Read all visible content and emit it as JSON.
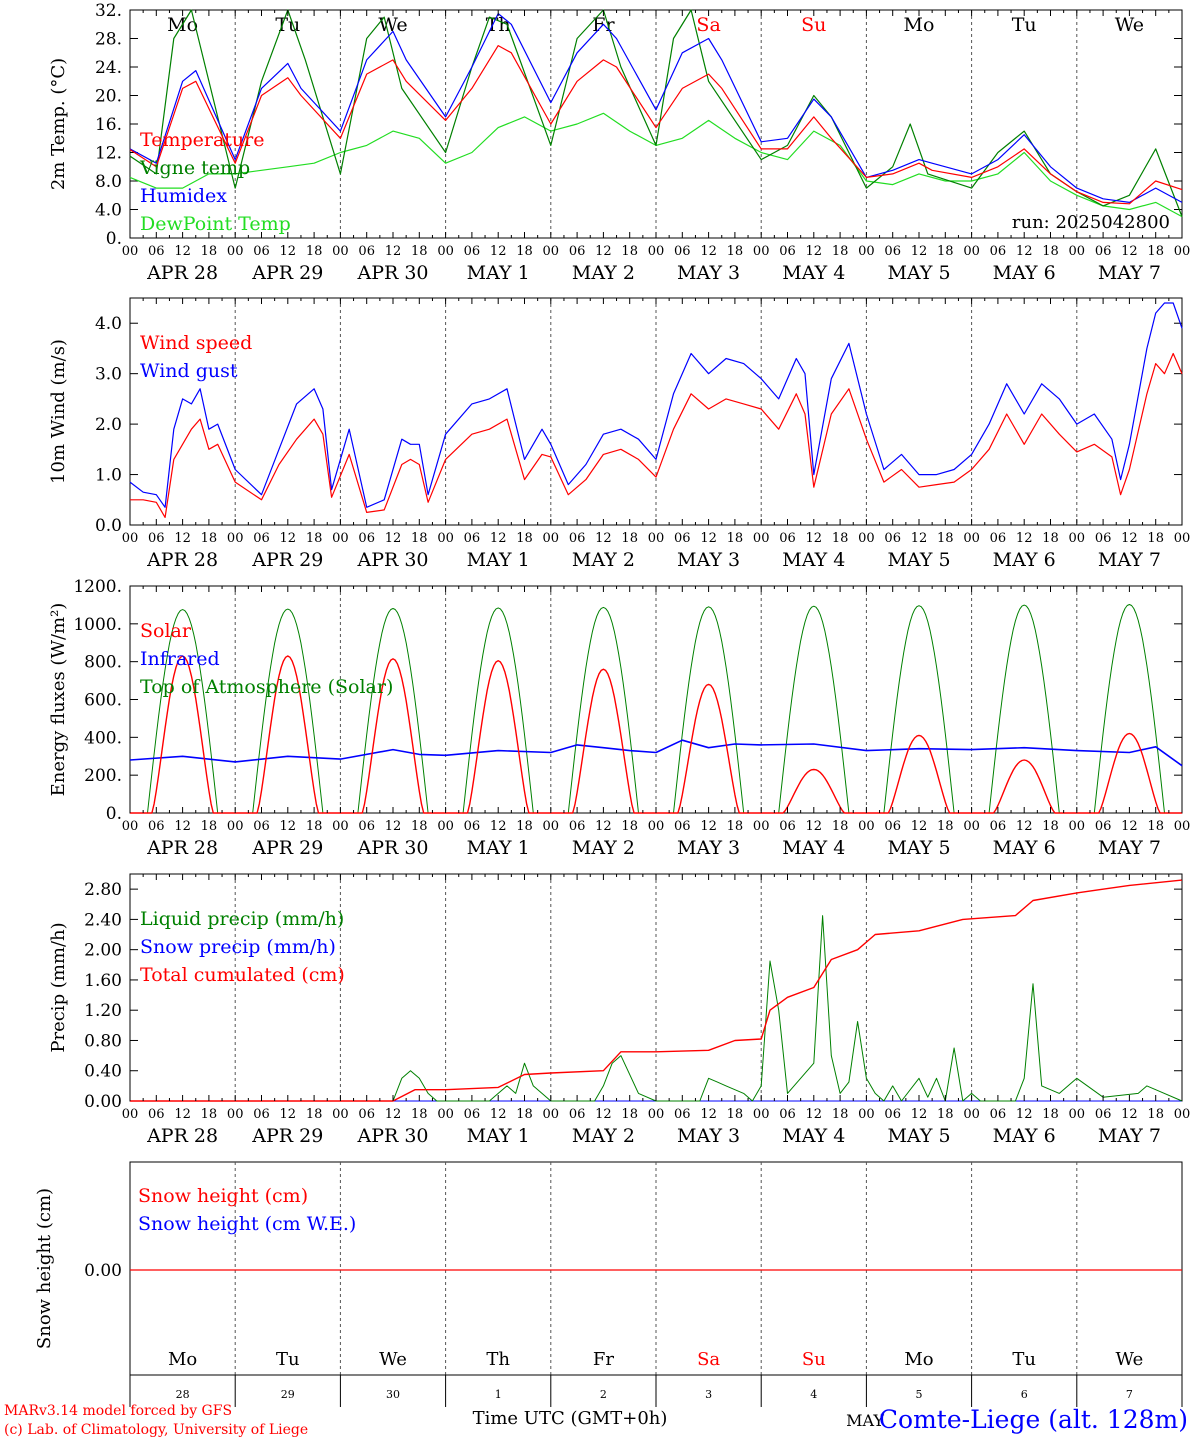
{
  "colors": {
    "red": "#ff0000",
    "dark_red": "#e00000",
    "blue": "#0000ff",
    "green": "#008000",
    "light_green": "#22dd22",
    "axis": "#000000",
    "grid": "#555555"
  },
  "day_names": [
    "Mo",
    "Tu",
    "We",
    "Th",
    "Fr",
    "Sa",
    "Su",
    "Mo",
    "Tu",
    "We"
  ],
  "day_name_colors": [
    "#000000",
    "#000000",
    "#000000",
    "#000000",
    "#000000",
    "#ff0000",
    "#ff0000",
    "#000000",
    "#000000",
    "#000000"
  ],
  "date_labels": [
    "APR 28",
    "APR 29",
    "APR 30",
    "MAY  1",
    "MAY  2",
    "MAY  3",
    "MAY  4",
    "MAY  5",
    "MAY  6",
    "MAY  7"
  ],
  "hour_ticks": [
    "00",
    "06",
    "12",
    "18"
  ],
  "hour_tick_end": "00",
  "day_numbers": [
    "28",
    "29",
    "30",
    "1",
    "2",
    "3",
    "4",
    "5",
    "6",
    "7"
  ],
  "footer": {
    "model_line": "MARv3.14 model forced by GFS",
    "copyright_line": "(c) Lab. of Climatology, University of Liege",
    "time_axis_label": "Time UTC (GMT+0h)",
    "month_label": "MAY",
    "station_label": "Comte-Liege (alt. 128m)"
  },
  "chart_data": [
    {
      "id": "temperature",
      "type": "line",
      "ylabel": "2m Temp. (°C)",
      "ylim": [
        0,
        32
      ],
      "yticks": [
        "0.",
        "4.0",
        "8.0",
        "12.",
        "16.",
        "20.",
        "24.",
        "28.",
        "32."
      ],
      "run_label": "run: 2025042800",
      "x_unit": "hours since 2025-04-28 00 UTC",
      "series": [
        {
          "name": "Temperature",
          "color": "#ff0000",
          "x": [
            0,
            6,
            12,
            15,
            24,
            30,
            36,
            39,
            48,
            54,
            60,
            63,
            72,
            78,
            84,
            87,
            96,
            102,
            108,
            111,
            120,
            126,
            132,
            135,
            144,
            150,
            156,
            160,
            168,
            174,
            180,
            183,
            192,
            198,
            204,
            210,
            216,
            222,
            228,
            234,
            240
          ],
          "y": [
            12.4,
            10,
            21,
            22,
            10.5,
            20,
            22.5,
            20,
            14,
            23,
            25,
            22,
            16.5,
            21,
            27,
            26,
            16,
            22,
            25,
            24,
            15.5,
            21,
            23,
            21,
            12.5,
            12.5,
            17,
            14,
            8.5,
            9,
            10.5,
            9.5,
            8.5,
            10,
            12.5,
            9,
            6.5,
            5,
            4.8,
            8,
            6.8
          ]
        },
        {
          "name": "Vigne temp",
          "color": "#008000",
          "x": [
            0,
            6,
            10,
            14,
            24,
            30,
            36,
            40,
            48,
            54,
            58,
            62,
            72,
            78,
            82,
            86,
            96,
            102,
            108,
            112,
            120,
            124,
            128,
            132,
            144,
            150,
            156,
            160,
            168,
            174,
            178,
            182,
            192,
            198,
            204,
            210,
            216,
            222,
            228,
            234,
            240
          ],
          "y": [
            11.5,
            9,
            28,
            32,
            7,
            22,
            32,
            25,
            9,
            28,
            31,
            21,
            12,
            24,
            31,
            30,
            13,
            28,
            32,
            24,
            13,
            28,
            32,
            22,
            11,
            13,
            20,
            17,
            7,
            10,
            16,
            9,
            7,
            12,
            15,
            9,
            6.5,
            4.5,
            6,
            12.5,
            3
          ]
        },
        {
          "name": "Humidex",
          "color": "#0000ff",
          "x": [
            0,
            6,
            12,
            15,
            24,
            30,
            36,
            39,
            48,
            54,
            60,
            63,
            72,
            78,
            84,
            87,
            96,
            102,
            108,
            111,
            120,
            126,
            132,
            135,
            144,
            150,
            156,
            160,
            168,
            174,
            180,
            183,
            192,
            198,
            204,
            210,
            216,
            222,
            228,
            234,
            240
          ],
          "y": [
            12.5,
            10.5,
            22,
            23.5,
            11,
            21,
            24.5,
            21,
            15,
            25,
            29,
            25,
            17,
            24,
            31.5,
            30,
            19,
            26,
            30,
            28,
            18,
            26,
            28,
            25,
            13.5,
            14,
            19.5,
            17,
            8.5,
            9.5,
            11,
            10.5,
            9,
            11,
            14.5,
            10,
            7,
            5.5,
            5,
            7,
            5
          ]
        },
        {
          "name": "DewPoint Temp",
          "color": "#22dd22",
          "x": [
            0,
            6,
            12,
            18,
            24,
            30,
            36,
            42,
            48,
            54,
            60,
            66,
            72,
            78,
            84,
            90,
            96,
            102,
            108,
            114,
            120,
            126,
            132,
            138,
            144,
            150,
            156,
            162,
            168,
            174,
            180,
            186,
            192,
            198,
            204,
            210,
            216,
            222,
            228,
            234,
            240
          ],
          "y": [
            8.5,
            7,
            7,
            9,
            9,
            9.5,
            10,
            10.5,
            12,
            13,
            15,
            14,
            10.5,
            12,
            15.5,
            17,
            15,
            16,
            17.5,
            15,
            13,
            14,
            16.5,
            14,
            12,
            11,
            15,
            13,
            8,
            7.5,
            9,
            8,
            8,
            9,
            12,
            8,
            6,
            4.5,
            4,
            5,
            3
          ]
        }
      ]
    },
    {
      "id": "wind",
      "type": "line",
      "ylabel": "10m Wind (m/s)",
      "ylim": [
        0,
        4.5
      ],
      "yticks": [
        "0.0",
        "1.0",
        "2.0",
        "3.0",
        "4.0"
      ],
      "x_unit": "hours since 2025-04-28 00 UTC",
      "series": [
        {
          "name": "Wind speed",
          "color": "#ff0000",
          "x": [
            0,
            3,
            6,
            8,
            10,
            12,
            14,
            16,
            18,
            20,
            24,
            30,
            34,
            38,
            42,
            44,
            46,
            50,
            54,
            58,
            62,
            64,
            66,
            68,
            72,
            78,
            82,
            86,
            90,
            94,
            96,
            100,
            104,
            108,
            112,
            116,
            120,
            124,
            128,
            132,
            136,
            140,
            144,
            148,
            152,
            154,
            156,
            160,
            164,
            168,
            172,
            176,
            180,
            184,
            188,
            192,
            196,
            200,
            204,
            208,
            212,
            216,
            220,
            224,
            226,
            228,
            232,
            234,
            236,
            238,
            240
          ],
          "y": [
            0.5,
            0.5,
            0.45,
            0.15,
            1.3,
            1.6,
            1.9,
            2.1,
            1.5,
            1.6,
            0.85,
            0.5,
            1.2,
            1.7,
            2.1,
            1.8,
            0.55,
            1.4,
            0.25,
            0.3,
            1.2,
            1.3,
            1.2,
            0.45,
            1.3,
            1.8,
            1.9,
            2.1,
            0.9,
            1.4,
            1.35,
            0.6,
            0.9,
            1.4,
            1.5,
            1.3,
            0.95,
            1.9,
            2.6,
            2.3,
            2.5,
            2.4,
            2.3,
            1.9,
            2.6,
            2.2,
            0.75,
            2.2,
            2.7,
            1.7,
            0.85,
            1.1,
            0.75,
            0.8,
            0.85,
            1.1,
            1.5,
            2.2,
            1.6,
            2.2,
            1.8,
            1.45,
            1.6,
            1.35,
            0.6,
            1.1,
            2.6,
            3.2,
            3.0,
            3.4,
            3.0
          ]
        },
        {
          "name": "Wind gust",
          "color": "#0000ff",
          "x": [
            0,
            3,
            6,
            8,
            10,
            12,
            14,
            16,
            18,
            20,
            24,
            30,
            34,
            38,
            42,
            44,
            46,
            50,
            54,
            58,
            62,
            64,
            66,
            68,
            72,
            78,
            82,
            86,
            90,
            94,
            96,
            100,
            104,
            108,
            112,
            116,
            120,
            124,
            128,
            132,
            136,
            140,
            144,
            148,
            152,
            154,
            156,
            160,
            164,
            168,
            172,
            176,
            180,
            184,
            188,
            192,
            196,
            200,
            204,
            208,
            212,
            216,
            220,
            224,
            226,
            228,
            232,
            234,
            236,
            238,
            240
          ],
          "y": [
            0.85,
            0.65,
            0.6,
            0.35,
            1.9,
            2.5,
            2.4,
            2.7,
            1.9,
            2.0,
            1.1,
            0.6,
            1.5,
            2.4,
            2.7,
            2.3,
            0.7,
            1.9,
            0.35,
            0.5,
            1.7,
            1.6,
            1.6,
            0.6,
            1.8,
            2.4,
            2.5,
            2.7,
            1.3,
            1.9,
            1.6,
            0.8,
            1.2,
            1.8,
            1.9,
            1.7,
            1.3,
            2.6,
            3.4,
            3.0,
            3.3,
            3.2,
            2.9,
            2.5,
            3.3,
            3.0,
            1.0,
            2.9,
            3.6,
            2.2,
            1.1,
            1.4,
            1.0,
            1.0,
            1.1,
            1.4,
            2.0,
            2.8,
            2.2,
            2.8,
            2.5,
            2.0,
            2.2,
            1.7,
            0.9,
            1.6,
            3.5,
            4.2,
            4.4,
            4.4,
            3.9
          ]
        }
      ]
    },
    {
      "id": "radiation",
      "type": "line",
      "ylabel": "Energy fluxes (W/m²)",
      "ylim": [
        0,
        1200
      ],
      "yticks": [
        "0.",
        "200.",
        "400.",
        "600.",
        "800.",
        "1000.",
        "1200."
      ],
      "x_unit": "hours since 2025-04-28 00 UTC",
      "toa_peaks": [
        1075,
        1078,
        1081,
        1084,
        1087,
        1090,
        1093,
        1096,
        1099,
        1102
      ],
      "solar_peaks": [
        830,
        830,
        815,
        805,
        760,
        680,
        230,
        410,
        280,
        420
      ],
      "infrared": {
        "x": [
          0,
          12,
          24,
          36,
          48,
          60,
          66,
          72,
          84,
          96,
          102,
          108,
          114,
          120,
          126,
          132,
          138,
          144,
          156,
          168,
          180,
          192,
          204,
          216,
          228,
          234,
          240
        ],
        "y": [
          280,
          300,
          270,
          300,
          285,
          335,
          310,
          305,
          330,
          320,
          360,
          345,
          330,
          320,
          385,
          345,
          365,
          360,
          365,
          330,
          340,
          335,
          345,
          330,
          320,
          350,
          250
        ]
      },
      "series": [
        {
          "name": "Solar",
          "color": "#ff0000"
        },
        {
          "name": "Infrared",
          "color": "#0000ff"
        },
        {
          "name": "Top of Atmosphere (Solar)",
          "color": "#008000"
        }
      ]
    },
    {
      "id": "precip",
      "type": "line",
      "ylabel": "Precip (mm/h)",
      "ylim": [
        0,
        3.0
      ],
      "yticks": [
        "0.00",
        "0.40",
        "0.80",
        "1.20",
        "1.60",
        "2.00",
        "2.40",
        "2.80"
      ],
      "x_unit": "hours since 2025-04-28 00 UTC",
      "series": [
        {
          "name": "Liquid precip (mm/h)",
          "color": "#008000",
          "x": [
            0,
            60,
            62,
            64,
            66,
            68,
            70,
            74,
            82,
            84,
            86,
            88,
            90,
            92,
            94,
            96,
            106,
            108,
            110,
            112,
            116,
            120,
            130,
            132,
            134,
            136,
            140,
            142,
            144,
            146,
            148,
            150,
            156,
            158,
            160,
            162,
            164,
            166,
            168,
            170,
            172,
            174,
            176,
            180,
            182,
            184,
            186,
            188,
            190,
            192,
            194,
            196,
            202,
            204,
            206,
            208,
            212,
            216,
            222,
            230,
            232,
            234,
            240
          ],
          "y": [
            0,
            0,
            0.3,
            0.4,
            0.3,
            0.1,
            0,
            0,
            0,
            0.1,
            0.2,
            0.1,
            0.5,
            0.2,
            0.1,
            0,
            0,
            0.2,
            0.5,
            0.6,
            0.1,
            0,
            0,
            0.3,
            0.25,
            0.2,
            0.1,
            0,
            0.2,
            1.85,
            1.2,
            0.1,
            0.5,
            2.45,
            0.6,
            0.1,
            0.25,
            1.05,
            0.3,
            0.1,
            0,
            0.2,
            0,
            0.3,
            0.05,
            0.3,
            0,
            0.7,
            0,
            0.1,
            0,
            0,
            0,
            0.3,
            1.55,
            0.2,
            0.1,
            0.3,
            0.05,
            0.1,
            0.2,
            0.15,
            0
          ]
        },
        {
          "name": "Snow precip (mm/h)",
          "color": "#0000ff",
          "x": [
            0,
            240
          ],
          "y": [
            0,
            0
          ]
        },
        {
          "name": "Total cumulated (cm)",
          "color": "#ff0000",
          "x": [
            0,
            60,
            65,
            72,
            84,
            90,
            96,
            108,
            112,
            120,
            132,
            138,
            144,
            146,
            150,
            156,
            160,
            166,
            170,
            180,
            190,
            202,
            206,
            216,
            228,
            240
          ],
          "y": [
            0,
            0,
            0.15,
            0.15,
            0.18,
            0.35,
            0.37,
            0.4,
            0.65,
            0.65,
            0.67,
            0.8,
            0.82,
            1.2,
            1.37,
            1.5,
            1.87,
            2.0,
            2.2,
            2.25,
            2.4,
            2.45,
            2.65,
            2.75,
            2.85,
            2.92
          ]
        }
      ]
    },
    {
      "id": "snow",
      "type": "line",
      "ylabel": "Snow height (cm)",
      "yticks": [
        "0.00"
      ],
      "x_unit": "hours since 2025-04-28 00 UTC",
      "series": [
        {
          "name": "Snow height (cm)",
          "color": "#ff0000",
          "x": [
            0,
            240
          ],
          "y": [
            0,
            0
          ]
        },
        {
          "name": "Snow height (cm W.E.)",
          "color": "#0000ff",
          "x": [
            0,
            240
          ],
          "y": [
            0,
            0
          ]
        }
      ]
    }
  ]
}
